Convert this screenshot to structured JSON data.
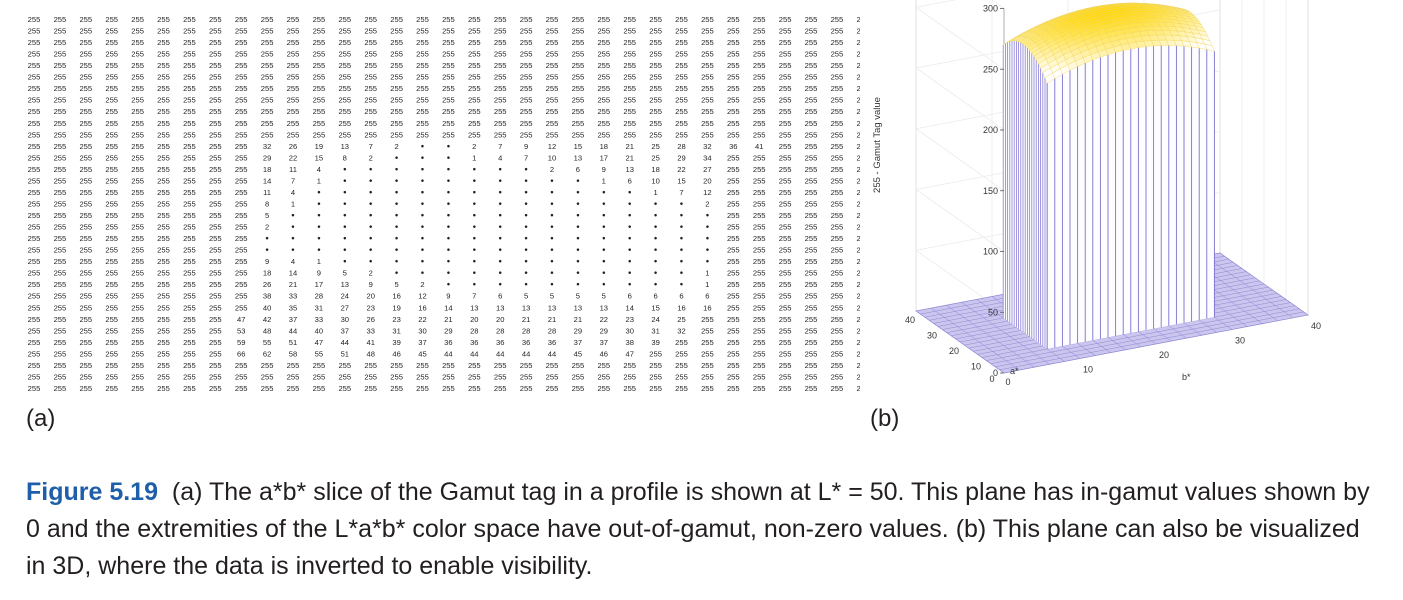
{
  "figure": {
    "number": "Figure 5.19",
    "caption": "(a) The a*b* slice of the Gamut tag in a profile is shown at L* = 50. This plane has in-gamut values shown by 0 and the extremities of the L*a*b* color space have out-of-gamut, non-zero values. (b) This plane can also be visualized in 3D, where the data is inverted to enable visibility."
  },
  "panel_a": {
    "label": "(a)"
  },
  "panel_b": {
    "label": "(b)"
  },
  "chart_data": [
    {
      "type": "table",
      "fill_value": 255,
      "n_rows": 33,
      "n_cols": 33,
      "rows": [
        {
          "row": 11,
          "start_col": 9,
          "values": [
            32,
            26,
            19,
            13,
            7,
            2,
            0,
            0,
            2,
            7,
            9,
            12,
            15,
            18,
            21,
            25,
            28,
            32,
            36,
            41
          ]
        },
        {
          "row": 12,
          "start_col": 9,
          "values": [
            29,
            22,
            15,
            8,
            2,
            0,
            0,
            0,
            1,
            4,
            7,
            10,
            13,
            17,
            21,
            25,
            29,
            34
          ]
        },
        {
          "row": 13,
          "start_col": 9,
          "values": [
            18,
            11,
            4,
            0,
            0,
            0,
            0,
            0,
            0,
            0,
            0,
            2,
            6,
            9,
            13,
            18,
            22,
            27
          ]
        },
        {
          "row": 14,
          "start_col": 9,
          "values": [
            14,
            7,
            1,
            0,
            0,
            0,
            0,
            0,
            0,
            0,
            0,
            0,
            0,
            1,
            6,
            10,
            15,
            20
          ]
        },
        {
          "row": 15,
          "start_col": 9,
          "values": [
            11,
            4,
            0,
            0,
            0,
            0,
            0,
            0,
            0,
            0,
            0,
            0,
            0,
            0,
            0,
            1,
            7,
            12
          ]
        },
        {
          "row": 16,
          "start_col": 9,
          "values": [
            8,
            1,
            0,
            0,
            0,
            0,
            0,
            0,
            0,
            0,
            0,
            0,
            0,
            0,
            0,
            0,
            0,
            2
          ]
        },
        {
          "row": 17,
          "start_col": 9,
          "values": [
            5,
            0,
            0,
            0,
            0,
            0,
            0,
            0,
            0,
            0,
            0,
            0,
            0,
            0,
            0,
            0,
            0,
            0
          ]
        },
        {
          "row": 18,
          "start_col": 9,
          "values": [
            2,
            0,
            0,
            0,
            0,
            0,
            0,
            0,
            0,
            0,
            0,
            0,
            0,
            0,
            0,
            0,
            0,
            0
          ]
        },
        {
          "row": 19,
          "start_col": 9,
          "values": [
            0,
            0,
            0,
            0,
            0,
            0,
            0,
            0,
            0,
            0,
            0,
            0,
            0,
            0,
            0,
            0,
            0,
            0
          ]
        },
        {
          "row": 20,
          "start_col": 9,
          "values": [
            0,
            0,
            0,
            0,
            0,
            0,
            0,
            0,
            0,
            0,
            0,
            0,
            0,
            0,
            0,
            0,
            0,
            0
          ]
        },
        {
          "row": 21,
          "start_col": 9,
          "values": [
            9,
            4,
            1,
            0,
            0,
            0,
            0,
            0,
            0,
            0,
            0,
            0,
            0,
            0,
            0,
            0,
            0,
            0
          ]
        },
        {
          "row": 22,
          "start_col": 9,
          "values": [
            18,
            14,
            9,
            5,
            2,
            0,
            0,
            0,
            0,
            0,
            0,
            0,
            0,
            0,
            0,
            0,
            0,
            1
          ]
        },
        {
          "row": 23,
          "start_col": 9,
          "values": [
            26,
            21,
            17,
            13,
            9,
            5,
            2,
            0,
            0,
            0,
            0,
            0,
            0,
            0,
            0,
            0,
            0,
            1
          ]
        },
        {
          "row": 24,
          "start_col": 9,
          "values": [
            38,
            33,
            28,
            24,
            20,
            16,
            12,
            9,
            7,
            6,
            5,
            5,
            5,
            5,
            6,
            6,
            6,
            6
          ]
        },
        {
          "row": 25,
          "start_col": 9,
          "values": [
            40,
            35,
            31,
            27,
            23,
            19,
            16,
            14,
            13,
            13,
            13,
            13,
            13,
            13,
            14,
            15,
            16,
            16
          ]
        },
        {
          "row": 26,
          "start_col": 8,
          "values": [
            47,
            42,
            37,
            33,
            30,
            26,
            23,
            22,
            21,
            20,
            20,
            21,
            21,
            21,
            22,
            23,
            24,
            25
          ]
        },
        {
          "row": 27,
          "start_col": 8,
          "values": [
            53,
            48,
            44,
            40,
            37,
            33,
            31,
            30,
            29,
            28,
            28,
            28,
            28,
            29,
            29,
            30,
            31,
            32
          ]
        },
        {
          "row": 28,
          "start_col": 8,
          "values": [
            59,
            55,
            51,
            47,
            44,
            41,
            39,
            37,
            36,
            36,
            36,
            36,
            36,
            37,
            37,
            38,
            39
          ]
        },
        {
          "row": 29,
          "start_col": 8,
          "values": [
            66,
            62,
            58,
            55,
            51,
            48,
            46,
            45,
            44,
            44,
            44,
            44,
            44,
            45,
            46,
            47
          ]
        }
      ]
    },
    {
      "type": "surface3d",
      "zlabel": "255 - Gamut Tag value",
      "xlabel": "a*",
      "ylabel": "b*",
      "x_ticks": [
        0,
        10,
        20,
        30,
        40
      ],
      "y_ticks": [
        0,
        10,
        20,
        30,
        40
      ],
      "z_ticks": [
        0,
        50,
        100,
        150,
        200,
        250,
        300
      ],
      "zlim": [
        0,
        300
      ],
      "colors": {
        "low": "#b8b4e6",
        "mid": "#ffffff",
        "high": "#f5d800"
      }
    }
  ]
}
